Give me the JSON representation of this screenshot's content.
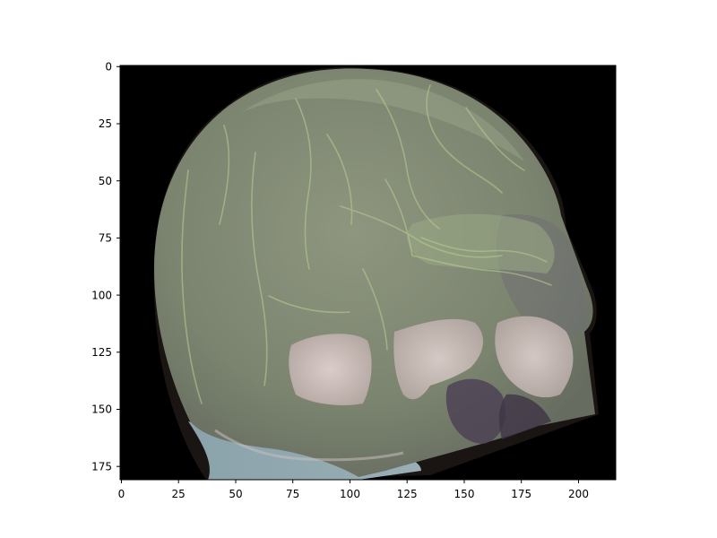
{
  "figure": {
    "background": "#ffffff",
    "image_background": "#000000",
    "x_ticks": [
      "0",
      "25",
      "50",
      "75",
      "100",
      "125",
      "150",
      "175",
      "200"
    ],
    "y_ticks": [
      "0",
      "25",
      "50",
      "75",
      "100",
      "125",
      "150",
      "175"
    ],
    "colors": {
      "skull_fill": "#7a836f",
      "skull_highlight": "#b9c3a6",
      "bone_pale": "#d8c9c6",
      "vessel_green": "#b6c98f",
      "jaw_blue": "#8fa6ae",
      "shadow_purple": "#4a3f52"
    }
  }
}
